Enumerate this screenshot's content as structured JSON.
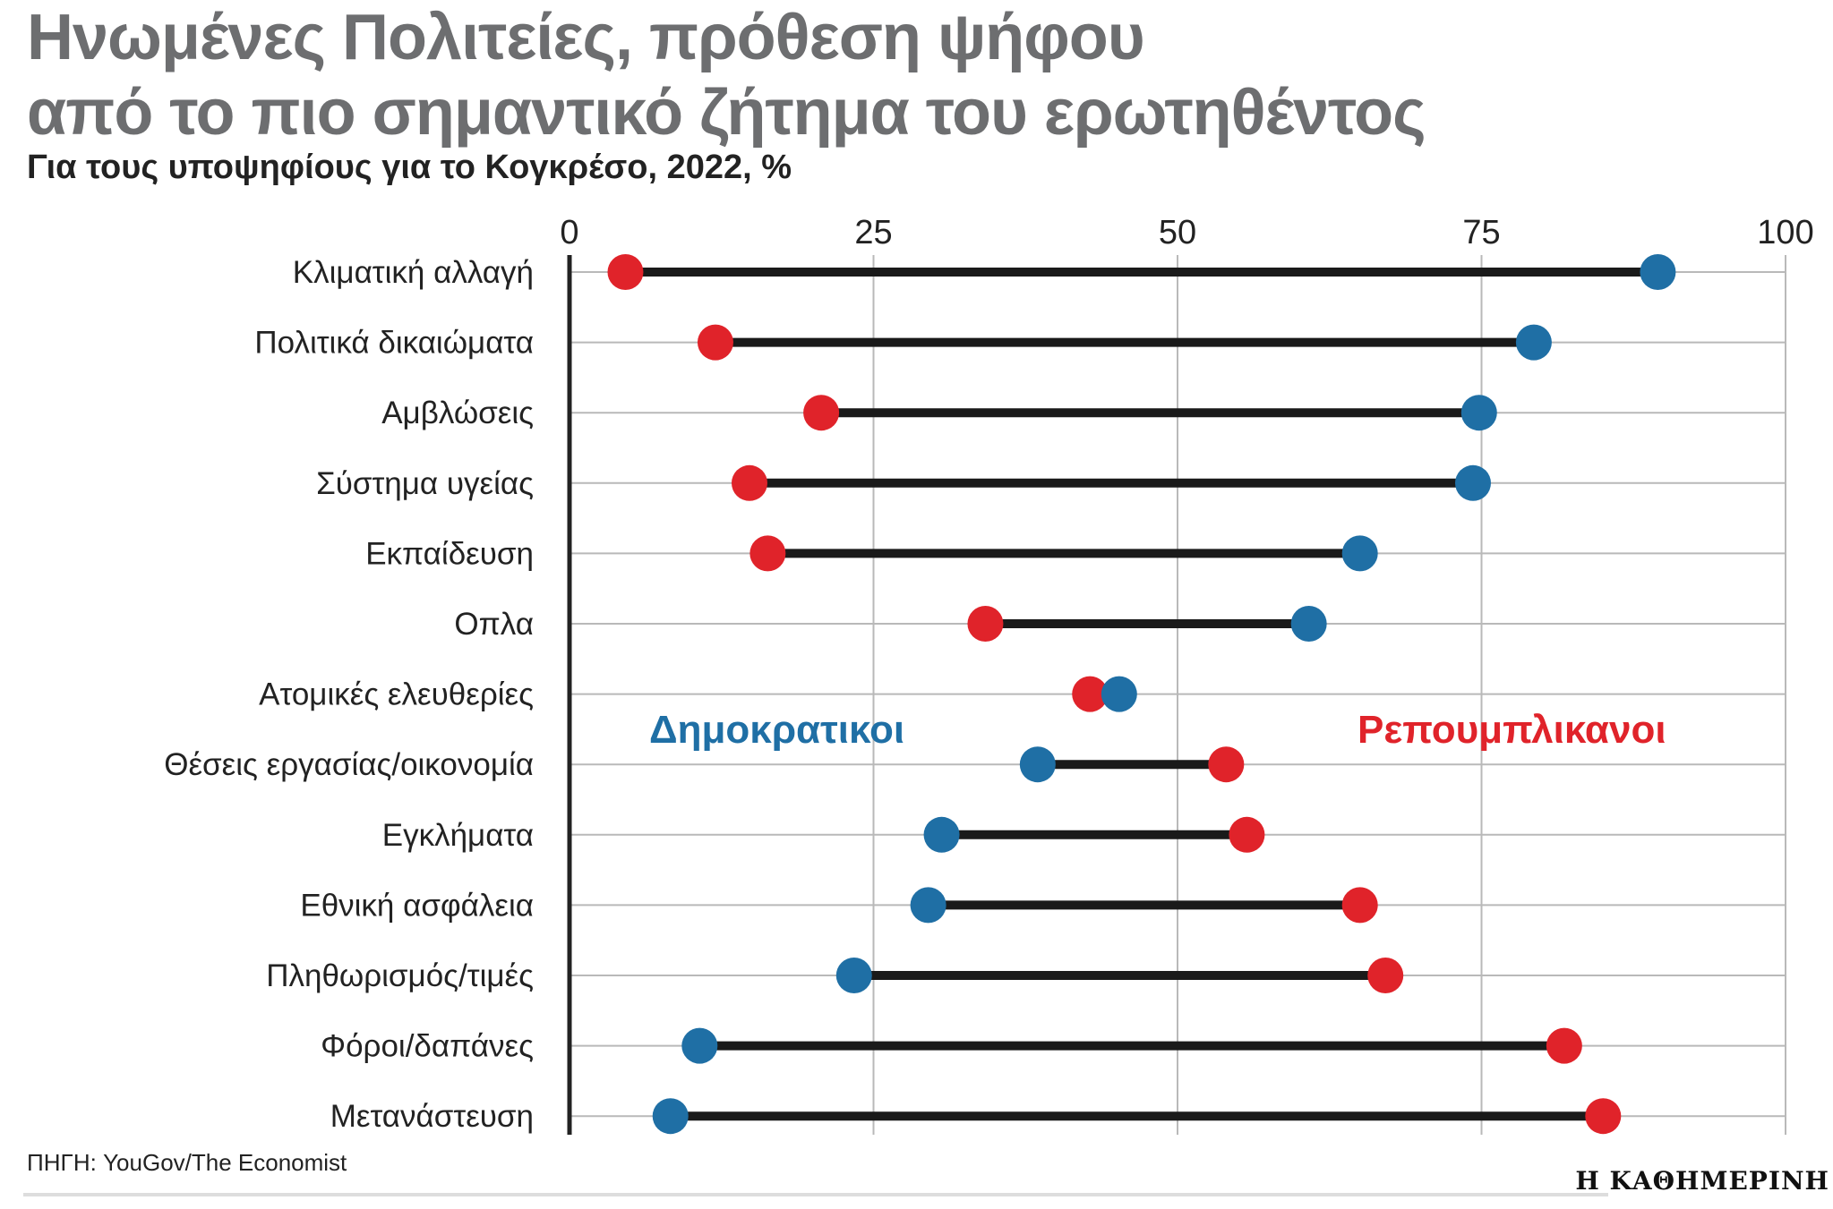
{
  "title_lines": [
    "Ηνωμένες Πολιτείες, πρόθεση ψήφου",
    "από το πιο σημαντικό ζήτημα του ερωτηθέντος"
  ],
  "subtitle": "Για τους υποψηφίους για το Κογκρέσο, 2022, %",
  "source": "ΠΗΓΗ: YouGov/The Economist",
  "brand": "Η ΚΑΘΗΜΕΡΙΝΗ",
  "colors": {
    "democrats": "#1f6fa5",
    "republicans": "#e0232a",
    "connector": "#1a1a1a",
    "grid": "#b9b9b9"
  },
  "chart_data": {
    "type": "dumbbell",
    "title": "Ηνωμένες Πολιτείες, πρόθεση ψήφου από το πιο σημαντικό ζήτημα του ερωτηθέντος",
    "xlim": [
      0,
      100
    ],
    "xticks": [
      0,
      25,
      50,
      75,
      100
    ],
    "grid": true,
    "categories": [
      "Κλιματική αλλαγή",
      "Πολιτικά δικαιώματα",
      "Αμβλώσεις",
      "Σύστημα υγείας",
      "Εκπαίδευση",
      "Οπλα",
      "Ατομικές ελευθερίες",
      "Θέσεις εργασίας/οικονομία",
      "Εγκλήματα",
      "Εθνική ασφάλεια",
      "Πληθωρισμός/τιμές",
      "Φόροι/δαπάνες",
      "Μετανάστευση"
    ],
    "series": [
      {
        "name": "Δημοκρατικοί",
        "label": "Δημοκρατικοι",
        "legend_position": "middle-left",
        "values": [
          89.5,
          79.3,
          74.8,
          74.3,
          65.0,
          60.8,
          45.2,
          38.5,
          30.6,
          29.5,
          23.4,
          10.7,
          8.3
        ]
      },
      {
        "name": "Ρεπουμπλικανοί",
        "label": "Ρεπουμπλικανοι",
        "legend_position": "middle-right",
        "values": [
          4.6,
          12.0,
          20.7,
          14.8,
          16.3,
          34.2,
          42.8,
          54.0,
          55.7,
          65.0,
          67.1,
          81.8,
          85.0
        ]
      }
    ]
  }
}
